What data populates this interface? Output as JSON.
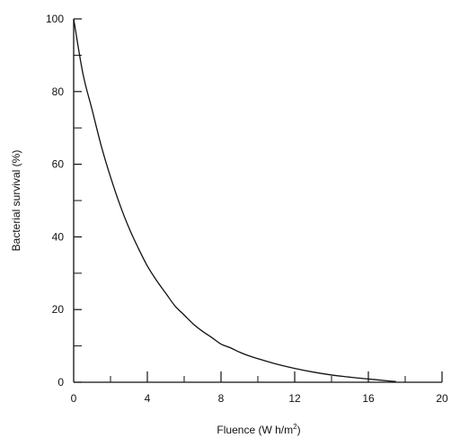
{
  "chart_data": {
    "type": "line",
    "xlabel": "Fluence (W h/m",
    "xlabel_superscript": "2",
    "xlabel_suffix": ")",
    "ylabel": "Bacterial survival (%)",
    "xlim": [
      0,
      20
    ],
    "ylim": [
      0,
      100
    ],
    "x_ticks": [
      0,
      4,
      8,
      12,
      16,
      20
    ],
    "x_tick_labels": [
      "0",
      "4",
      "8",
      "12",
      "16",
      "20"
    ],
    "x_minor_ticks": [
      2,
      6,
      10,
      14,
      18
    ],
    "y_ticks": [
      0,
      20,
      40,
      60,
      80,
      100
    ],
    "y_tick_labels": [
      "0",
      "20",
      "40",
      "60",
      "80",
      "100"
    ],
    "y_minor_ticks": [
      10,
      30,
      50,
      70,
      90
    ],
    "grid": false,
    "series": [
      {
        "x": [
          0,
          0.5,
          1,
          1.5,
          2,
          2.5,
          3,
          3.5,
          4,
          4.5,
          5,
          5.5,
          6,
          6.5,
          7,
          7.5,
          8,
          8.5,
          9,
          9.5,
          10,
          11,
          12,
          13,
          14,
          15,
          16,
          17,
          17.5
        ],
        "y": [
          100,
          85,
          75,
          65,
          56.5,
          49,
          42.5,
          37,
          32,
          28,
          24.5,
          21,
          18.5,
          16,
          14,
          12.3,
          10.5,
          9.5,
          8.3,
          7.3,
          6.5,
          5,
          3.8,
          2.8,
          2,
          1.4,
          0.9,
          0.4,
          0.2
        ]
      }
    ]
  }
}
